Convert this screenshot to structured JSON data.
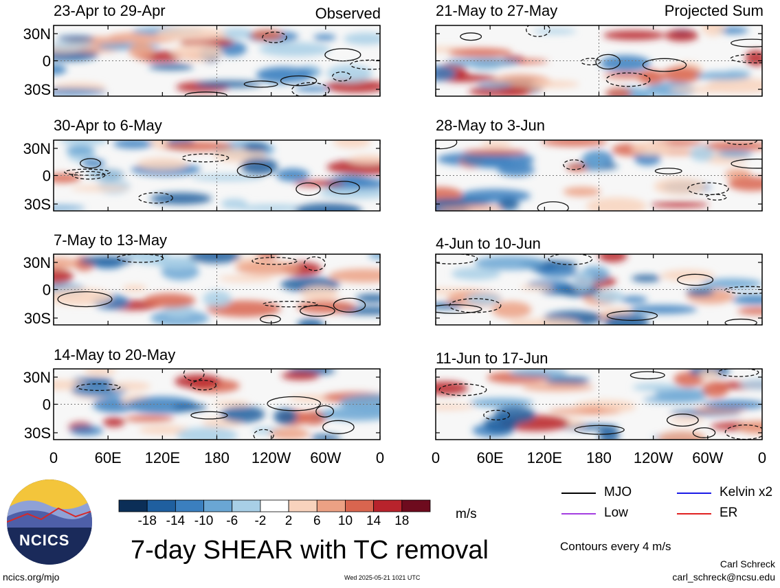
{
  "chart_data": {
    "type": "heatmap",
    "title": "7-day SHEAR with TC removal",
    "left_label": "Observed",
    "right_label": "Projected Sum",
    "ylabels": [
      "30N",
      "0",
      "30S"
    ],
    "xlabels": [
      "0",
      "60E",
      "120E",
      "180",
      "120W",
      "60W",
      "0"
    ],
    "panels_left": [
      {
        "title": "23-Apr to 29-Apr"
      },
      {
        "title": "30-Apr to 6-May"
      },
      {
        "title": "7-May to 13-May"
      },
      {
        "title": "14-May to 20-May"
      }
    ],
    "panels_right": [
      {
        "title": "21-May to 27-May"
      },
      {
        "title": "28-May to 3-Jun"
      },
      {
        "title": "4-Jun to 10-Jun"
      },
      {
        "title": "11-Jun to 17-Jun"
      }
    ],
    "colorbar": {
      "labels": [
        "-18",
        "-14",
        "-10",
        "-6",
        "-2",
        "2",
        "6",
        "10",
        "14",
        "18"
      ],
      "units": "m/s",
      "colors": [
        "#0b2e57",
        "#1f5f9f",
        "#3b7fbf",
        "#6aa6d4",
        "#a8cfe6",
        "#ffffff",
        "#f8d3bd",
        "#eca184",
        "#d9654f",
        "#b8232c",
        "#6e0b1e"
      ]
    },
    "legend": [
      {
        "label": "MJO",
        "color": "#000000"
      },
      {
        "label": "Kelvin x2",
        "color": "#1919e6"
      },
      {
        "label": "Low",
        "color": "#a33ce0"
      },
      {
        "label": "ER",
        "color": "#e02020"
      }
    ],
    "contours_note": "Contours every 4 m/s"
  },
  "footer": {
    "logo_text": "NCICS",
    "url": "ncics.org/mjo",
    "timestamp": "Wed 2025-05-21 1021 UTC",
    "author": "Carl Schreck",
    "email": "carl_schreck@ncsu.edu"
  }
}
